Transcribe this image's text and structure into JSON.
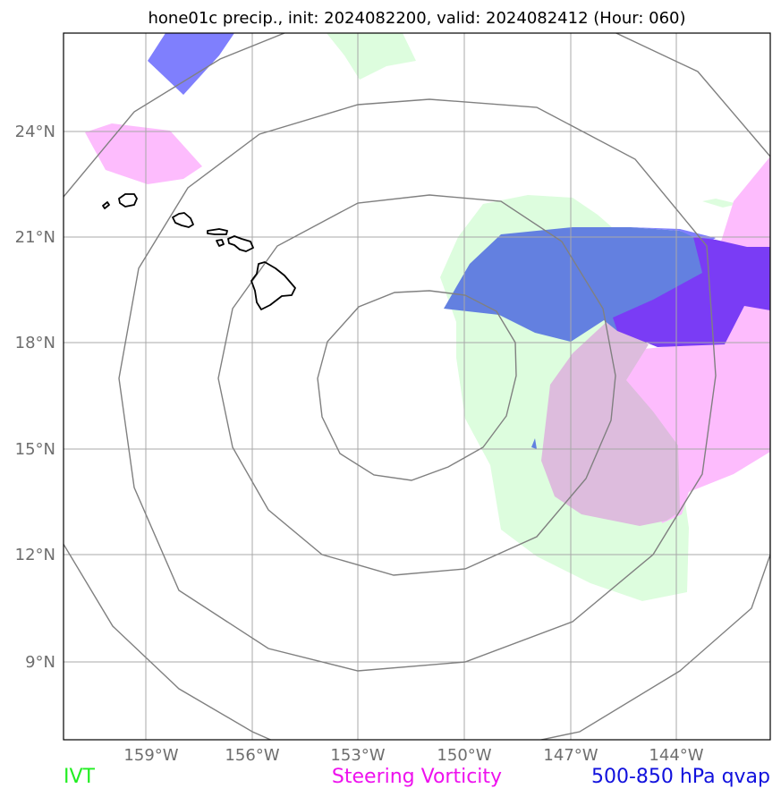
{
  "title": "hone01c precip., init: 2024082200, valid: 2024082412 (Hour: 060)",
  "axes": {
    "lat_ticks": [
      "24°N",
      "21°N",
      "18°N",
      "15°N",
      "12°N",
      "9°N"
    ],
    "lon_ticks": [
      "159°W",
      "156°W",
      "153°W",
      "150°W",
      "147°W",
      "144°W"
    ]
  },
  "legend": {
    "ivt": {
      "label": "IVT",
      "color": "#22ee22"
    },
    "vorticity": {
      "label": "Steering Vorticity",
      "color": "#ee11ee"
    },
    "qvap": {
      "label": "500-850 hPa qvap",
      "color": "#1111dd"
    }
  },
  "colors": {
    "ivt_fill": "#ddfdde",
    "vorticity_fill": "#fdbcfd",
    "qvap_fill": "#6380e0",
    "qvap_light": "#7f7ffd",
    "overlap_purple": "#7a3cf5",
    "overlap_mauve": "#ddbcdd",
    "grid": "#a8a8a8",
    "rings": "#808080",
    "coast": "#000000"
  }
}
